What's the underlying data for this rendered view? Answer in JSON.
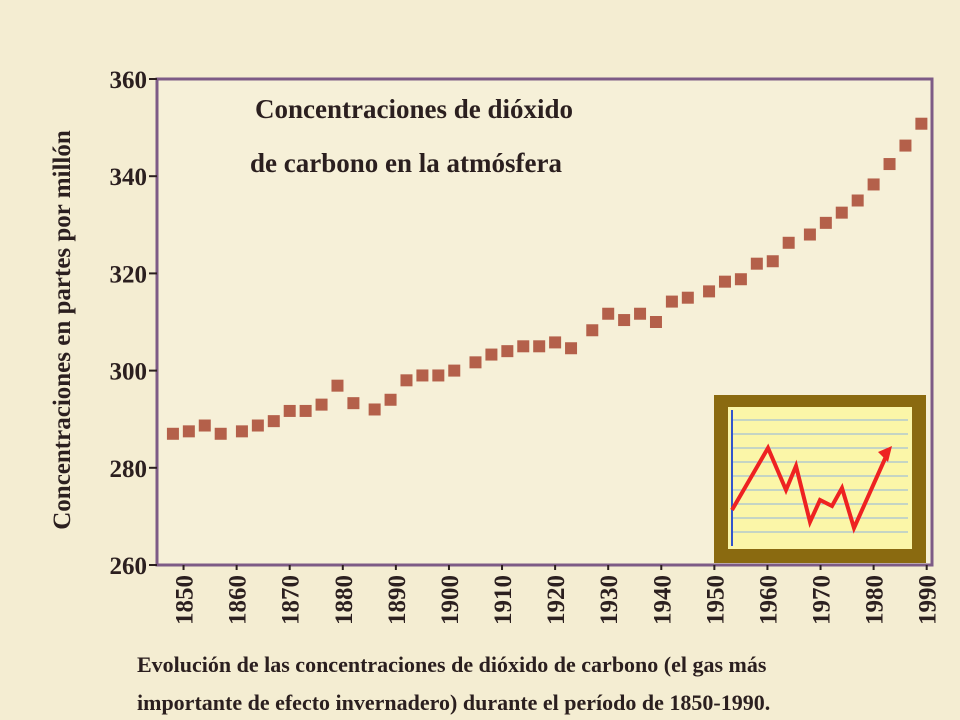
{
  "chart_data": {
    "type": "scatter",
    "title": [
      "Concentraciones de dióxido",
      "de carbono en la atmósfera"
    ],
    "y_label": "Concentraciones en partes por millón",
    "caption": [
      "Evolución de las concentraciones de dióxido de carbono (el gas más",
      "importante de efecto invernadero) durante el período de 1850-1990."
    ],
    "color": "#b4604a",
    "x": [
      1848,
      1851,
      1854,
      1857,
      1861,
      1864,
      1867,
      1870,
      1873,
      1876,
      1879,
      1882,
      1886,
      1889,
      1892,
      1895,
      1898,
      1901,
      1905,
      1908,
      1911,
      1914,
      1917,
      1920,
      1923,
      1927,
      1930,
      1933,
      1936,
      1939,
      1942,
      1945,
      1949,
      1952,
      1955,
      1958,
      1961,
      1964,
      1968,
      1971,
      1974,
      1977,
      1980,
      1983,
      1986,
      1989
    ],
    "values": [
      287,
      287.5,
      288.7,
      287,
      287.5,
      288.7,
      289.6,
      291.7,
      291.7,
      293,
      296.9,
      293.3,
      292,
      294,
      298,
      299,
      299,
      300,
      301.7,
      303.3,
      304,
      305,
      305,
      305.8,
      304.6,
      308.3,
      311.7,
      310.4,
      311.7,
      310,
      314.2,
      315,
      316.3,
      318.3,
      318.8,
      322,
      322.5,
      326.3,
      328,
      330.4,
      332.5,
      335,
      338.3,
      342.5,
      346.3,
      350.8
    ],
    "xlim": [
      1845,
      1991
    ],
    "xticks": [
      1850,
      1860,
      1870,
      1880,
      1890,
      1900,
      1910,
      1920,
      1930,
      1940,
      1950,
      1960,
      1970,
      1980,
      1990
    ],
    "ylim": [
      260,
      360
    ],
    "yticks": [
      260,
      280,
      300,
      320,
      340,
      360
    ]
  }
}
